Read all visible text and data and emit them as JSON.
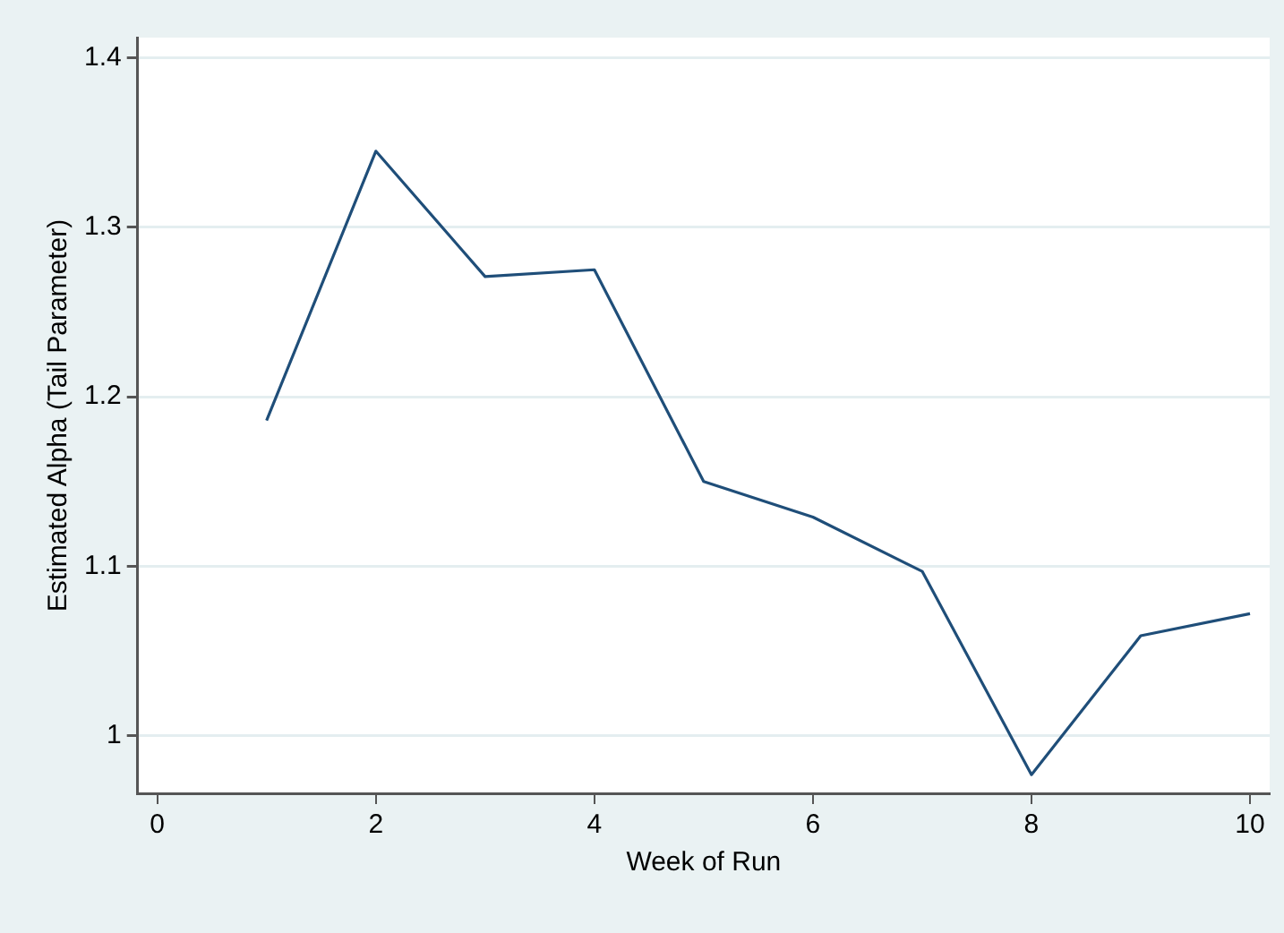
{
  "chart_data": {
    "type": "line",
    "xlabel": "Week of Run",
    "ylabel": "Estimated Alpha (Tail Parameter)",
    "x": [
      1,
      2,
      3,
      4,
      5,
      6,
      7,
      8,
      9,
      10
    ],
    "series": [
      {
        "color": "#1f4e79",
        "values": [
          1.186,
          1.345,
          1.271,
          1.275,
          1.15,
          1.129,
          1.097,
          0.977,
          1.059,
          1.072
        ]
      }
    ],
    "xlim": [
      -0.18,
      10.18
    ],
    "xticks": [
      0,
      2,
      4,
      6,
      8,
      10
    ],
    "ylim": [
      0.966,
      1.412
    ],
    "yticks": [
      1,
      1.1,
      1.2,
      1.3,
      1.4
    ],
    "grid": "y",
    "legend": false,
    "marker": "none",
    "line_style": "solid"
  }
}
